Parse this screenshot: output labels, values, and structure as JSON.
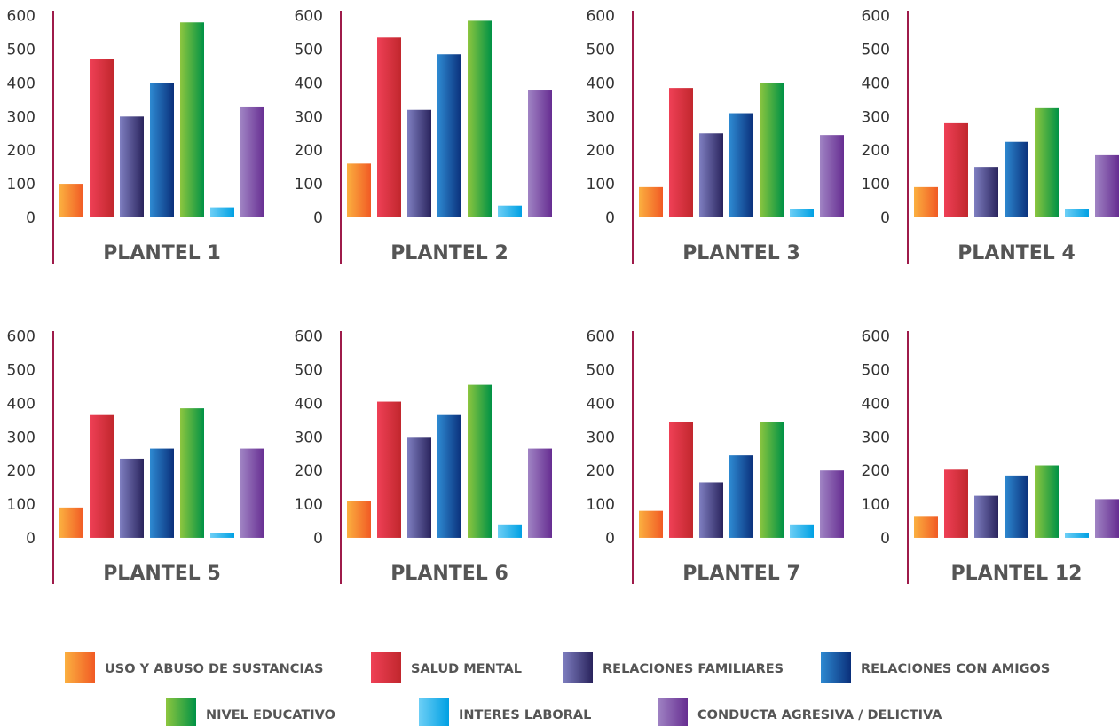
{
  "categories": [
    {
      "name": "USO Y ABUSO DE SUSTANCIAS",
      "color_start": "#fbb040",
      "color_end": "#f15a24"
    },
    {
      "name": "SALUD MENTAL",
      "color_start": "#ef4056",
      "color_end": "#c1272d"
    },
    {
      "name": "RELACIONES FAMILIARES",
      "color_start": "#7f7fc1",
      "color_end": "#29235c"
    },
    {
      "name": "RELACIONES CON AMIGOS",
      "color_start": "#2e8ad2",
      "color_end": "#0a2f7a"
    },
    {
      "name": "NIVEL EDUCATIVO",
      "color_start": "#8dc63f",
      "color_end": "#009245"
    },
    {
      "name": "INTERES LABORAL",
      "color_start": "#6dcff6",
      "color_end": "#00a0e3"
    },
    {
      "name": "CONDUCTA AGRESIVA / DELICTIVA",
      "color_start": "#a084c4",
      "color_end": "#662d91"
    }
  ],
  "axis_color": "#9e1b4a",
  "chart_data": [
    {
      "type": "bar",
      "title": "PLANTEL 1",
      "yticks": [
        "0",
        "100",
        "200",
        "300",
        "400",
        "500",
        "600"
      ],
      "ylim": [
        -45,
        615
      ],
      "values": [
        100,
        470,
        300,
        400,
        580,
        30,
        330
      ]
    },
    {
      "type": "bar",
      "title": "PLANTEL 2",
      "yticks": [
        "0",
        "100",
        "200",
        "300",
        "400",
        "500",
        "600"
      ],
      "ylim": [
        -45,
        615
      ],
      "values": [
        160,
        535,
        320,
        485,
        585,
        35,
        380
      ]
    },
    {
      "type": "bar",
      "title": "PLANTEL 3",
      "yticks": [
        "0",
        "100",
        "200",
        "300",
        "400",
        "500",
        "600"
      ],
      "ylim": [
        -45,
        615
      ],
      "values": [
        90,
        385,
        250,
        310,
        400,
        25,
        245
      ]
    },
    {
      "type": "bar",
      "title": "PLANTEL 4",
      "yticks": [
        "0",
        "100",
        "200",
        "300",
        "400",
        "500",
        "600"
      ],
      "ylim": [
        -45,
        615
      ],
      "values": [
        90,
        280,
        150,
        225,
        325,
        25,
        185
      ]
    },
    {
      "type": "bar",
      "title": "PLANTEL 5",
      "yticks": [
        "0",
        "100",
        "200",
        "300",
        "400",
        "500",
        "600"
      ],
      "ylim": [
        -45,
        615
      ],
      "values": [
        90,
        365,
        235,
        265,
        385,
        15,
        265
      ]
    },
    {
      "type": "bar",
      "title": "PLANTEL 6",
      "yticks": [
        "0",
        "100",
        "200",
        "300",
        "400",
        "500",
        "600"
      ],
      "ylim": [
        -45,
        615
      ],
      "values": [
        110,
        405,
        300,
        365,
        455,
        40,
        265
      ]
    },
    {
      "type": "bar",
      "title": "PLANTEL 7",
      "yticks": [
        "0",
        "100",
        "200",
        "300",
        "400",
        "500",
        "600"
      ],
      "ylim": [
        -45,
        615
      ],
      "values": [
        80,
        345,
        165,
        245,
        345,
        40,
        200
      ]
    },
    {
      "type": "bar",
      "title": "PLANTEL 12",
      "yticks": [
        "0",
        "100",
        "200",
        "300",
        "400",
        "500",
        "600"
      ],
      "ylim": [
        -45,
        615
      ],
      "values": [
        65,
        205,
        125,
        185,
        215,
        15,
        115
      ]
    }
  ]
}
